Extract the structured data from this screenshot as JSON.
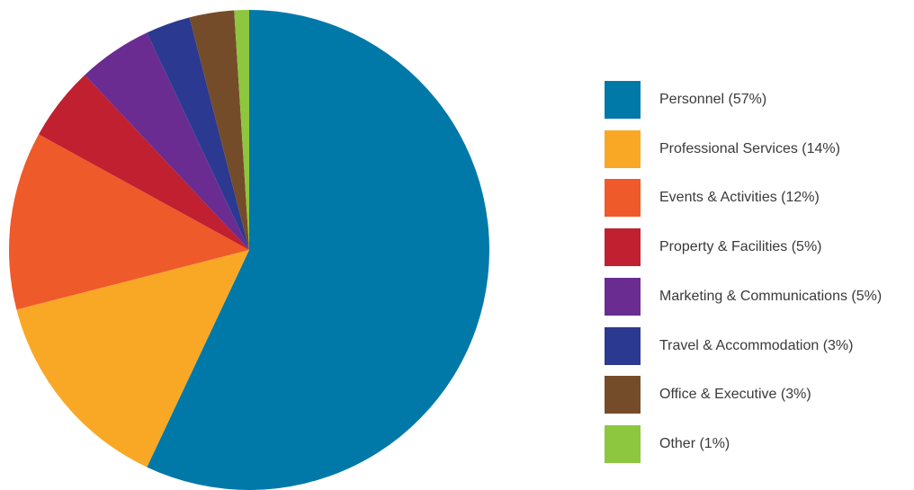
{
  "chart_data": {
    "type": "pie",
    "categories": [
      "Personnel",
      "Professional Services",
      "Events & Activities",
      "Property & Facilities",
      "Marketing & Communications",
      "Travel & Accommodation",
      "Office & Executive",
      "Other"
    ],
    "values": [
      57,
      14,
      12,
      5,
      5,
      3,
      3,
      1
    ],
    "colors": [
      "#0079a8",
      "#f9a826",
      "#ef5a2a",
      "#c0202f",
      "#6a2c91",
      "#2b3990",
      "#754c29",
      "#8dc63f"
    ],
    "legend_labels": [
      "Personnel (57%)",
      "Professional Services (14%)",
      "Events & Activities (12%)",
      "Property & Facilities (5%)",
      "Marketing & Communications (5%)",
      "Travel & Accommodation (3%)",
      "Office & Executive (3%)",
      "Other (1%)"
    ],
    "legend_position": "right"
  }
}
